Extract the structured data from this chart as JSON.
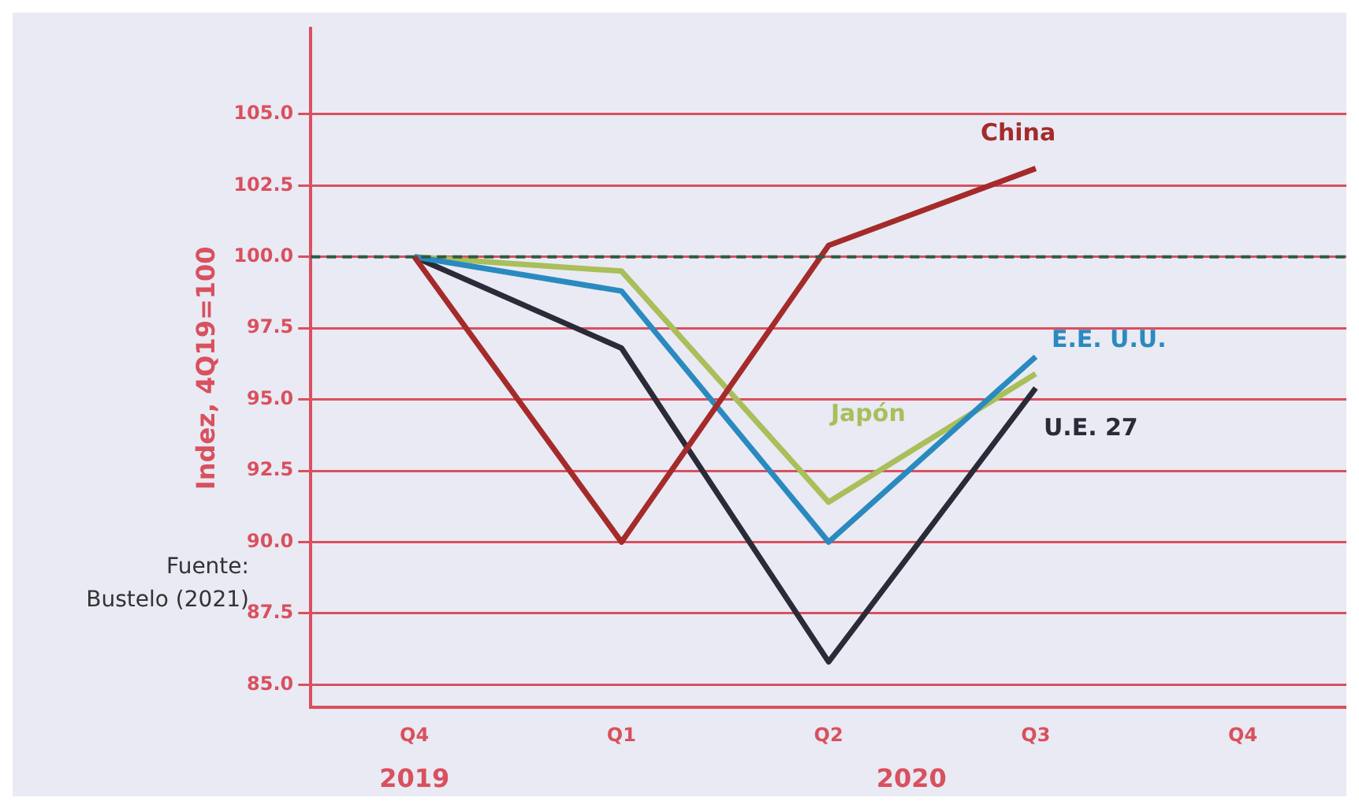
{
  "chart_data": {
    "type": "line",
    "ylabel": "Indez, 4Q19=100",
    "categories": [
      "Q4",
      "Q1",
      "Q2",
      "Q3",
      "Q4"
    ],
    "series": [
      {
        "name": "China",
        "color": "#a52a2a",
        "values": [
          100,
          90,
          100.4,
          103.1,
          null
        ]
      },
      {
        "name": "E.E. U.U.",
        "color": "#2a8ac0",
        "values": [
          100,
          98.8,
          90,
          96.5,
          null
        ]
      },
      {
        "name": "Japón",
        "color": "#a8bf5a",
        "values": [
          100,
          99.5,
          91.4,
          95.9,
          null
        ]
      },
      {
        "name": "U.E. 27",
        "color": "#2a2a38",
        "values": [
          100,
          96.8,
          85.8,
          95.4,
          null
        ]
      }
    ],
    "ylim": [
      84.2,
      108
    ],
    "yticks": [
      {
        "value": 85,
        "label": "85.0"
      },
      87.5,
      {
        "value": 90,
        "label": "90.0"
      },
      92.5,
      {
        "value": 95,
        "label": "95.0"
      },
      97.5,
      {
        "value": 100,
        "label": "100.0"
      },
      102.5,
      {
        "value": 105,
        "label": "105.0"
      }
    ],
    "ref_lines": [
      {
        "axis": "y",
        "value": 100,
        "color": "#2f5a44",
        "line_style": "dashed"
      }
    ],
    "annotations": [
      "2019",
      "2020",
      "Fuente: Bustelo (2021)"
    ],
    "grid": "y",
    "legend": false,
    "marker": "none",
    "line_style": "solid"
  }
}
